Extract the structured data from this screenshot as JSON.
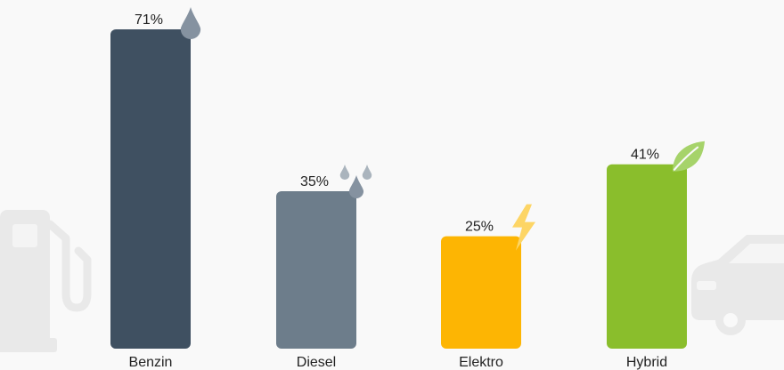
{
  "chart_data": {
    "type": "bar",
    "categories": [
      "Benzin",
      "Diesel",
      "Elektro",
      "Hybrid"
    ],
    "values": [
      71,
      35,
      25,
      41
    ],
    "value_labels": [
      "71%",
      "35%",
      "25%",
      "41%"
    ],
    "unit": "%",
    "ylim": [
      0,
      71
    ],
    "grid": false,
    "legend": "none",
    "colors": [
      "#3f5061",
      "#6d7d8b",
      "#fdb503",
      "#8abe2c"
    ],
    "icons": [
      "fuel-drop-icon",
      "double-drop-icon",
      "lightning-bolt-icon",
      "leaf-icon"
    ],
    "background_icons": [
      "fuel-pump-icon",
      "car-icon"
    ],
    "title": "",
    "xlabel": "",
    "ylabel": ""
  }
}
